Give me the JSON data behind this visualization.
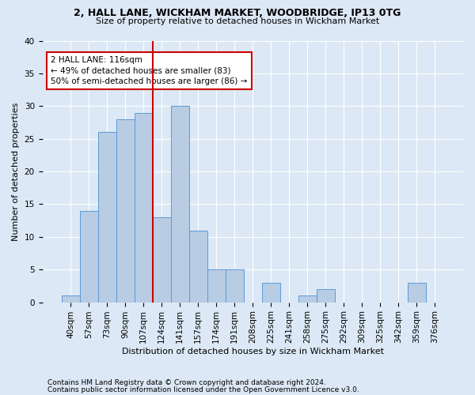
{
  "title1": "2, HALL LANE, WICKHAM MARKET, WOODBRIDGE, IP13 0TG",
  "title2": "Size of property relative to detached houses in Wickham Market",
  "xlabel": "Distribution of detached houses by size in Wickham Market",
  "ylabel": "Number of detached properties",
  "categories": [
    "40sqm",
    "57sqm",
    "73sqm",
    "90sqm",
    "107sqm",
    "124sqm",
    "141sqm",
    "157sqm",
    "174sqm",
    "191sqm",
    "208sqm",
    "225sqm",
    "241sqm",
    "258sqm",
    "275sqm",
    "292sqm",
    "309sqm",
    "325sqm",
    "342sqm",
    "359sqm",
    "376sqm"
  ],
  "values": [
    1,
    14,
    26,
    28,
    29,
    13,
    30,
    11,
    5,
    5,
    0,
    3,
    0,
    1,
    2,
    0,
    0,
    0,
    0,
    3,
    0
  ],
  "bar_color": "#b8cce4",
  "bar_edgecolor": "#5b9bd5",
  "vline_x_index": 4.5,
  "vline_color": "#cc0000",
  "annotation_text": "2 HALL LANE: 116sqm\n← 49% of detached houses are smaller (83)\n50% of semi-detached houses are larger (86) →",
  "annotation_box_facecolor": "#ffffff",
  "annotation_box_edgecolor": "#cc0000",
  "ylim": [
    0,
    40
  ],
  "yticks": [
    0,
    5,
    10,
    15,
    20,
    25,
    30,
    35,
    40
  ],
  "footnote1": "Contains HM Land Registry data © Crown copyright and database right 2024.",
  "footnote2": "Contains public sector information licensed under the Open Government Licence v3.0.",
  "fig_facecolor": "#dce8f5",
  "ax_facecolor": "#dce8f5",
  "grid_color": "#ffffff",
  "title1_fontsize": 9,
  "title2_fontsize": 8,
  "xlabel_fontsize": 8,
  "ylabel_fontsize": 8,
  "tick_fontsize": 7.5,
  "footnote_fontsize": 6.5,
  "annotation_fontsize": 7.5
}
